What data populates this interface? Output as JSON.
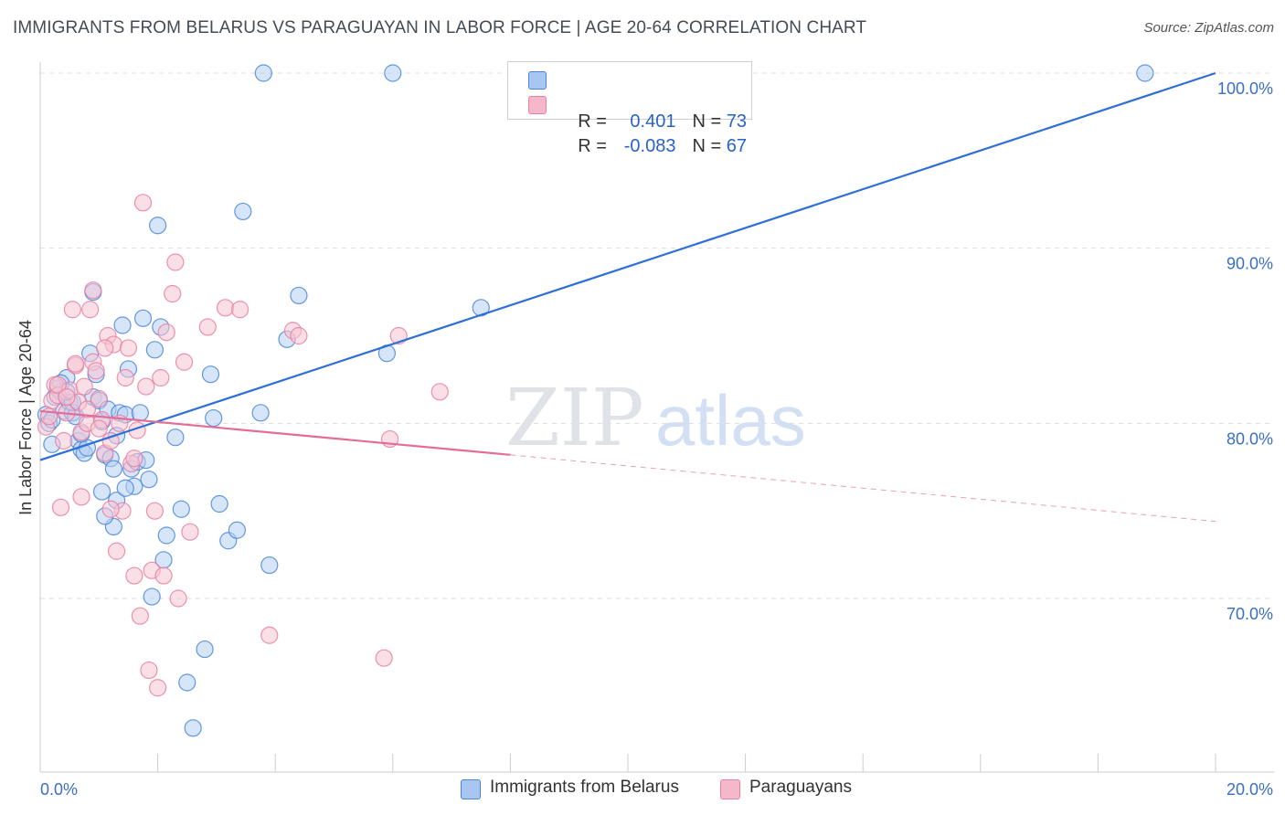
{
  "header": {
    "title": "IMMIGRANTS FROM BELARUS VS PARAGUAYAN IN LABOR FORCE | AGE 20-64 CORRELATION CHART",
    "source": "Source: ZipAtlas.com"
  },
  "watermark": {
    "zip": "ZIP",
    "atlas": "atlas"
  },
  "legend": {
    "rows": [
      {
        "r_label": "R = ",
        "r_value": "0.401",
        "n_label": "N = ",
        "n_value": "73",
        "color": "#a8c6f0"
      },
      {
        "r_label": "R = ",
        "r_value": "-0.083",
        "n_label": "N = ",
        "n_value": "67",
        "color": "#f5b8cb"
      }
    ]
  },
  "chart_data": {
    "type": "scatter",
    "title": "IMMIGRANTS FROM BELARUS VS PARAGUAYAN IN LABOR FORCE | AGE 20-64 CORRELATION CHART",
    "xlabel": "",
    "ylabel": "In Labor Force | Age 20-64",
    "xlim": [
      0,
      20
    ],
    "ylim": [
      60,
      102
    ],
    "x_tick_labels": [
      "0.0%",
      "20.0%"
    ],
    "y_ticks": [
      70,
      80,
      90,
      100
    ],
    "y_tick_labels": [
      "70.0%",
      "80.0%",
      "90.0%",
      "100.0%"
    ],
    "grid": true,
    "series": [
      {
        "name": "Immigrants from Belarus",
        "color": "#4a86d8",
        "fill": "#b5cff2",
        "trend": {
          "x0": 0,
          "y0": 77.9,
          "x1": 20,
          "y1": 100.0
        },
        "points": [
          [
            0.1,
            80.5
          ],
          [
            0.15,
            80.0
          ],
          [
            0.2,
            78.8
          ],
          [
            0.25,
            81.5
          ],
          [
            0.3,
            82.0
          ],
          [
            0.35,
            81.8
          ],
          [
            0.4,
            80.7
          ],
          [
            0.45,
            82.6
          ],
          [
            0.5,
            81.2
          ],
          [
            0.55,
            80.6
          ],
          [
            0.6,
            80.4
          ],
          [
            0.65,
            79.0
          ],
          [
            0.7,
            78.5
          ],
          [
            0.75,
            78.3
          ],
          [
            0.8,
            78.6
          ],
          [
            0.85,
            84.0
          ],
          [
            0.9,
            81.5
          ],
          [
            0.95,
            82.8
          ],
          [
            1.0,
            81.3
          ],
          [
            1.05,
            80.1
          ],
          [
            1.1,
            78.2
          ],
          [
            1.15,
            80.8
          ],
          [
            1.2,
            78.0
          ],
          [
            1.25,
            74.1
          ],
          [
            1.3,
            79.3
          ],
          [
            1.35,
            80.6
          ],
          [
            1.4,
            85.6
          ],
          [
            1.45,
            80.5
          ],
          [
            1.5,
            83.1
          ],
          [
            1.55,
            77.4
          ],
          [
            1.6,
            76.4
          ],
          [
            1.65,
            77.8
          ],
          [
            1.7,
            80.6
          ],
          [
            1.75,
            86.0
          ],
          [
            1.8,
            77.9
          ],
          [
            1.85,
            76.8
          ],
          [
            1.9,
            70.1
          ],
          [
            1.95,
            84.2
          ],
          [
            2.0,
            91.3
          ],
          [
            2.05,
            85.5
          ],
          [
            2.1,
            72.2
          ],
          [
            2.15,
            73.6
          ],
          [
            2.3,
            79.2
          ],
          [
            2.4,
            75.1
          ],
          [
            2.5,
            65.2
          ],
          [
            2.6,
            62.6
          ],
          [
            2.8,
            67.1
          ],
          [
            2.9,
            82.8
          ],
          [
            2.95,
            80.3
          ],
          [
            3.05,
            75.4
          ],
          [
            3.2,
            73.3
          ],
          [
            3.35,
            73.9
          ],
          [
            3.45,
            92.1
          ],
          [
            3.75,
            80.6
          ],
          [
            3.8,
            100.0
          ],
          [
            3.9,
            71.9
          ],
          [
            4.2,
            84.8
          ],
          [
            4.4,
            87.3
          ],
          [
            5.9,
            84.0
          ],
          [
            6.0,
            100.0
          ],
          [
            7.5,
            86.6
          ],
          [
            18.8,
            100.0
          ],
          [
            0.9,
            87.5
          ],
          [
            1.05,
            76.1
          ],
          [
            1.3,
            75.6
          ],
          [
            1.1,
            74.7
          ],
          [
            0.55,
            81.2
          ],
          [
            0.7,
            79.4
          ],
          [
            0.35,
            82.3
          ],
          [
            1.45,
            76.3
          ],
          [
            0.2,
            80.2
          ],
          [
            0.45,
            81.8
          ],
          [
            1.25,
            77.4
          ]
        ]
      },
      {
        "name": "Paraguayans",
        "color": "#e77fa0",
        "fill": "#f8c5d4",
        "trend": {
          "x0": 0,
          "y0": 80.7,
          "x1": 8.0,
          "y1": 78.2,
          "dash_x1": 20,
          "dash_y1": 74.4
        },
        "points": [
          [
            0.1,
            79.8
          ],
          [
            0.15,
            80.4
          ],
          [
            0.2,
            81.3
          ],
          [
            0.25,
            82.2
          ],
          [
            0.3,
            81.6
          ],
          [
            0.35,
            75.2
          ],
          [
            0.4,
            79.0
          ],
          [
            0.45,
            80.6
          ],
          [
            0.5,
            81.9
          ],
          [
            0.55,
            86.5
          ],
          [
            0.6,
            83.3
          ],
          [
            0.65,
            81.2
          ],
          [
            0.7,
            79.5
          ],
          [
            0.75,
            82.1
          ],
          [
            0.8,
            80.0
          ],
          [
            0.85,
            86.5
          ],
          [
            0.9,
            83.5
          ],
          [
            0.95,
            83.0
          ],
          [
            1.0,
            81.4
          ],
          [
            1.05,
            80.2
          ],
          [
            1.1,
            78.3
          ],
          [
            1.15,
            85.0
          ],
          [
            1.2,
            79.0
          ],
          [
            1.25,
            84.5
          ],
          [
            1.3,
            72.7
          ],
          [
            1.35,
            80.0
          ],
          [
            1.4,
            75.0
          ],
          [
            1.45,
            82.6
          ],
          [
            1.5,
            84.3
          ],
          [
            1.55,
            77.7
          ],
          [
            1.6,
            78.0
          ],
          [
            1.65,
            79.6
          ],
          [
            1.7,
            69.0
          ],
          [
            1.75,
            92.6
          ],
          [
            1.8,
            82.1
          ],
          [
            1.85,
            65.9
          ],
          [
            1.9,
            71.6
          ],
          [
            1.95,
            75.0
          ],
          [
            2.0,
            64.9
          ],
          [
            2.05,
            82.6
          ],
          [
            2.1,
            71.3
          ],
          [
            2.15,
            85.2
          ],
          [
            2.25,
            87.4
          ],
          [
            2.3,
            89.2
          ],
          [
            2.35,
            70.0
          ],
          [
            2.45,
            83.5
          ],
          [
            2.55,
            73.8
          ],
          [
            2.85,
            85.5
          ],
          [
            3.15,
            86.6
          ],
          [
            3.4,
            86.5
          ],
          [
            3.9,
            67.9
          ],
          [
            4.3,
            85.3
          ],
          [
            4.4,
            85.0
          ],
          [
            5.85,
            66.6
          ],
          [
            5.95,
            79.1
          ],
          [
            6.1,
            85.0
          ],
          [
            6.8,
            81.8
          ],
          [
            0.9,
            87.6
          ],
          [
            1.1,
            84.3
          ],
          [
            0.7,
            75.8
          ],
          [
            0.6,
            83.4
          ],
          [
            1.2,
            75.1
          ],
          [
            0.3,
            82.2
          ],
          [
            0.45,
            81.5
          ],
          [
            1.6,
            71.3
          ],
          [
            1.0,
            79.7
          ],
          [
            0.8,
            80.8
          ]
        ]
      }
    ]
  },
  "bottom_legend": {
    "items": [
      {
        "label": "Immigrants from Belarus",
        "color": "#a8c6f0"
      },
      {
        "label": "Paraguayans",
        "color": "#f5b8cb"
      }
    ]
  }
}
